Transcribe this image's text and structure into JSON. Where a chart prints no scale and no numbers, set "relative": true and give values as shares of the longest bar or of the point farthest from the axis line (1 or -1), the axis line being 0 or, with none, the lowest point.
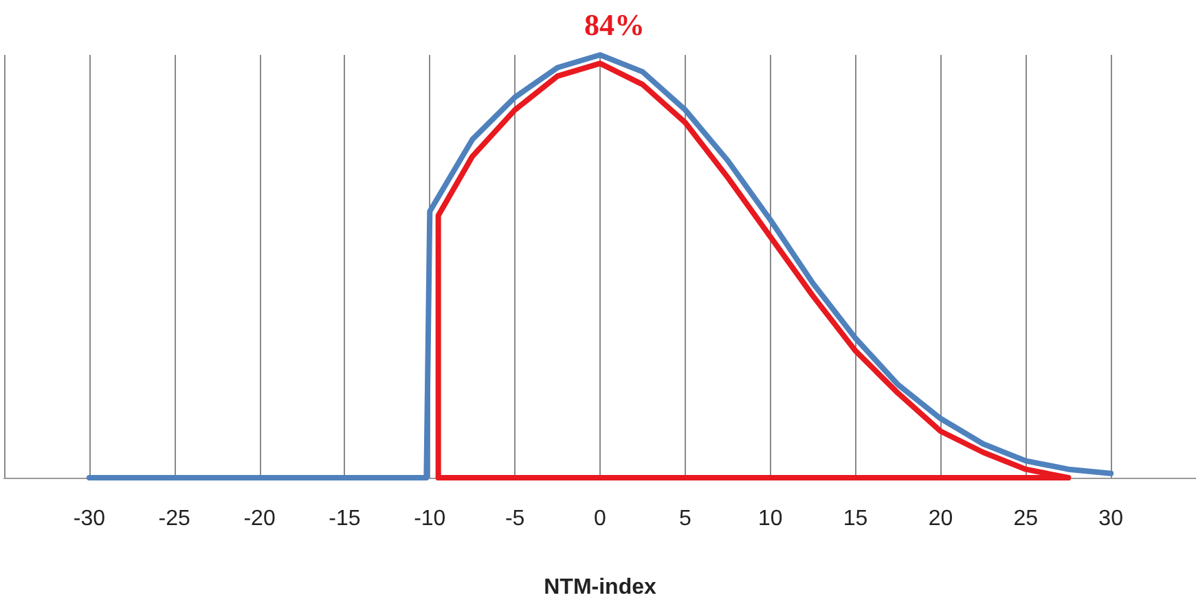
{
  "chart_data": {
    "type": "line",
    "xlabel": "NTM-index",
    "annotations": [
      "84%"
    ],
    "relative": true,
    "xlim": [
      -35,
      35
    ],
    "xticks": [
      {
        "value": -35,
        "label": null
      },
      -30,
      -25,
      -20,
      -15,
      -10,
      -5,
      0,
      5,
      10,
      15,
      20,
      25,
      30
    ],
    "grid": "x",
    "tick_labels": "x",
    "marker": "none",
    "line_style": "solid",
    "series": [
      {
        "color": "#4f81bd",
        "x": [
          -30,
          -10.2,
          -10,
          -7.5,
          -5,
          -2.5,
          0,
          2.5,
          5,
          7.5,
          10,
          12.5,
          15,
          17.5,
          20,
          22.5,
          25,
          27.5,
          30
        ],
        "values": [
          0,
          0,
          0.63,
          0.8,
          0.9,
          0.97,
          1,
          0.96,
          0.87,
          0.75,
          0.61,
          0.46,
          0.33,
          0.22,
          0.14,
          0.08,
          0.04,
          0.02,
          0.01
        ]
      },
      {
        "color": "#e8191f",
        "x": [
          -9.5,
          -9.5,
          -7.5,
          -5,
          -2.5,
          0,
          2.5,
          5,
          7.5,
          10,
          12.5,
          15,
          17.5,
          20,
          22.5,
          25,
          27.5
        ],
        "values": [
          0,
          0.62,
          0.76,
          0.87,
          0.95,
          0.98,
          0.93,
          0.84,
          0.71,
          0.57,
          0.43,
          0.3,
          0.2,
          0.11,
          0.06,
          0.02,
          0
        ]
      },
      {
        "color": "#e8191f",
        "x": [
          -9.5,
          27.5
        ],
        "values": [
          0,
          0
        ]
      }
    ]
  }
}
